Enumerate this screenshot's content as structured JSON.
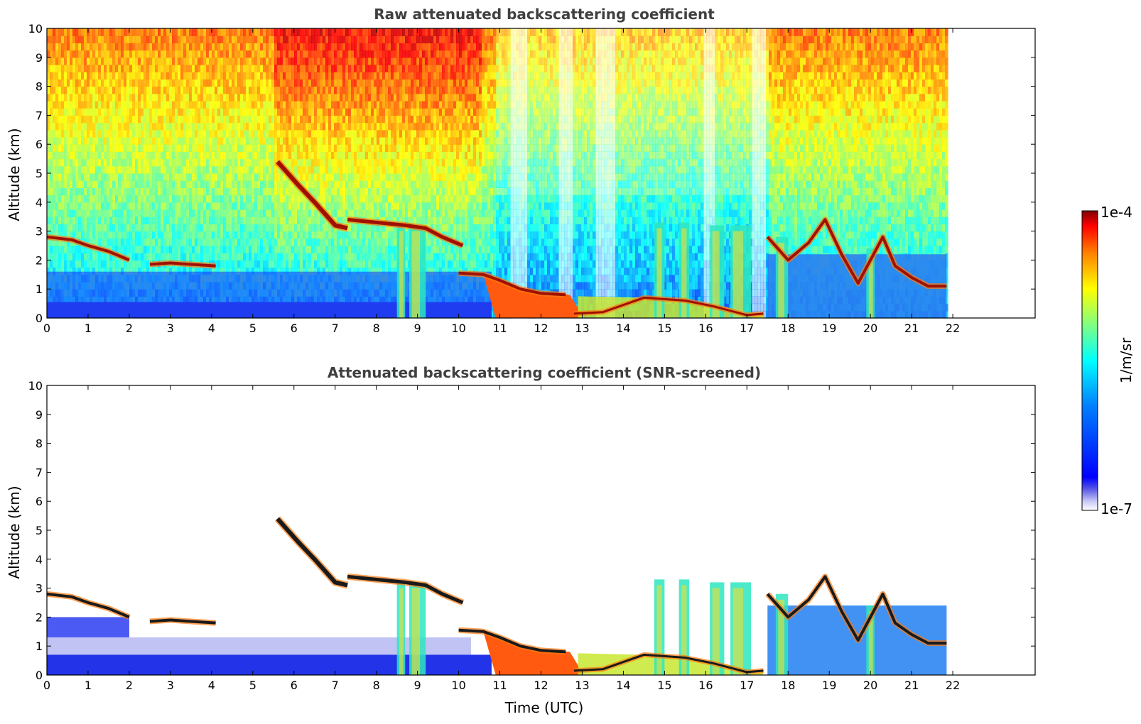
{
  "colors": {
    "jet": [
      "#000080",
      "#0000ff",
      "#0080ff",
      "#00ffff",
      "#80ff80",
      "#ffff00",
      "#ff8000",
      "#ff0000",
      "#800000"
    ],
    "low_fade": [
      "#ffffff",
      "#e8e8fb",
      "#c8c8f4",
      "#9a9aee",
      "#5a5ae8"
    ],
    "ceiling_black": "#000000"
  },
  "chart_data": [
    {
      "type": "heatmap",
      "title": "Raw attenuated backscattering coefficient",
      "ylabel": "Altitude (km)",
      "xlabel": "",
      "xlim": [
        0,
        24
      ],
      "ylim": [
        0,
        10
      ],
      "xticks": [
        "0",
        "1",
        "2",
        "3",
        "4",
        "5",
        "6",
        "7",
        "8",
        "9",
        "10",
        "11",
        "12",
        "13",
        "14",
        "15",
        "16",
        "17",
        "18",
        "19",
        "20",
        "21",
        "22"
      ],
      "yticks": [
        "0",
        "1",
        "2",
        "3",
        "4",
        "5",
        "6",
        "7",
        "8",
        "9",
        "10"
      ],
      "data_end_hour": 21.85,
      "screened": false
    },
    {
      "type": "heatmap",
      "title": "Attenuated backscattering coefficient (SNR-screened)",
      "ylabel": "Altitude (km)",
      "xlabel": "Time (UTC)",
      "xlim": [
        0,
        24
      ],
      "ylim": [
        0,
        10
      ],
      "xticks": [
        "0",
        "1",
        "2",
        "3",
        "4",
        "5",
        "6",
        "7",
        "8",
        "9",
        "10",
        "11",
        "12",
        "13",
        "14",
        "15",
        "16",
        "17",
        "18",
        "19",
        "20",
        "21",
        "22"
      ],
      "yticks": [
        "0",
        "1",
        "2",
        "3",
        "4",
        "5",
        "6",
        "7",
        "8",
        "9",
        "10"
      ],
      "data_end_hour": 21.85,
      "screened": true
    }
  ],
  "colorbar": {
    "label": "1/m/sr",
    "min_label": "1e-7",
    "max_label": "1e-4",
    "scale": "log"
  },
  "features": {
    "cloud_layer_early": [
      [
        0,
        2.8
      ],
      [
        0.6,
        2.7
      ],
      [
        1.0,
        2.5
      ],
      [
        1.5,
        2.3
      ],
      [
        2.0,
        2.0
      ]
    ],
    "cloud_patch_mid": [
      [
        2.5,
        1.85
      ],
      [
        3.0,
        1.9
      ],
      [
        3.5,
        1.85
      ],
      [
        4.1,
        1.8
      ]
    ],
    "slanted_fall": [
      [
        5.6,
        5.4
      ],
      [
        6.1,
        4.6
      ],
      [
        6.5,
        4.0
      ],
      [
        7.0,
        3.2
      ],
      [
        7.3,
        3.1
      ]
    ],
    "layer_8_10": [
      [
        7.3,
        3.4
      ],
      [
        8.0,
        3.3
      ],
      [
        8.7,
        3.2
      ],
      [
        9.2,
        3.1
      ],
      [
        9.6,
        2.8
      ],
      [
        10.1,
        2.5
      ]
    ],
    "descending_low": [
      [
        10.0,
        1.55
      ],
      [
        10.6,
        1.5
      ],
      [
        11.0,
        1.3
      ],
      [
        11.5,
        1.0
      ],
      [
        12.0,
        0.85
      ],
      [
        12.6,
        0.8
      ]
    ],
    "surface_cloud": [
      [
        12.8,
        0.15
      ],
      [
        13.5,
        0.2
      ],
      [
        14.5,
        0.7
      ],
      [
        15.5,
        0.6
      ],
      [
        16.2,
        0.4
      ],
      [
        17.0,
        0.1
      ],
      [
        17.4,
        0.15
      ]
    ],
    "late_clouds": [
      [
        17.5,
        2.8
      ],
      [
        18.0,
        2.0
      ],
      [
        18.5,
        2.6
      ],
      [
        18.9,
        3.4
      ],
      [
        19.3,
        2.2
      ],
      [
        19.7,
        1.2
      ],
      [
        20.0,
        2.0
      ],
      [
        20.3,
        2.8
      ],
      [
        20.6,
        1.8
      ],
      [
        21.0,
        1.4
      ],
      [
        21.4,
        1.1
      ],
      [
        21.85,
        1.1
      ]
    ],
    "fall_streaks": [
      [
        8.55,
        3.2
      ],
      [
        8.95,
        3.2
      ],
      [
        11.0,
        1.5
      ],
      [
        14.8,
        3.3
      ],
      [
        15.5,
        3.3
      ],
      [
        16.2,
        3.2
      ],
      [
        16.8,
        3.2
      ],
      [
        17.8,
        2.8
      ],
      [
        19.9,
        2.4
      ]
    ]
  }
}
